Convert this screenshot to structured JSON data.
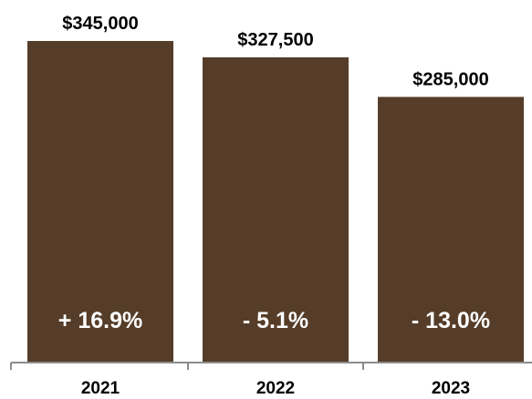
{
  "chart_data": {
    "type": "bar",
    "categories": [
      "2021",
      "2022",
      "2023"
    ],
    "values": [
      345000,
      327500,
      285000
    ],
    "value_labels": [
      "$345,000",
      "$327,500",
      "$285,000"
    ],
    "change_labels": [
      "+ 16.9%",
      "- 5.1%",
      "- 13.0%"
    ],
    "title": "",
    "xlabel": "",
    "ylabel": "",
    "ylim": [
      0,
      345000
    ],
    "grid": false,
    "legend": "none",
    "colors": {
      "bar": "#553d29",
      "axis": "#8c8c8c",
      "value_text": "#000000",
      "change_text": "#ffffff"
    }
  }
}
